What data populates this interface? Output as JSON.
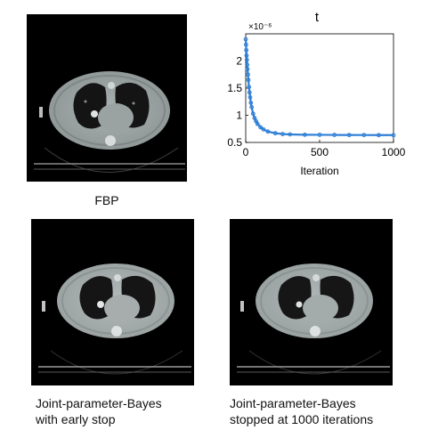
{
  "figure": {
    "panels": [
      {
        "id": "fbp",
        "caption": "FBP"
      },
      {
        "id": "early",
        "caption_lines": [
          "Joint-parameter-Bayes",
          "with early stop"
        ]
      },
      {
        "id": "full",
        "caption_lines": [
          "Joint-parameter-Bayes",
          "stopped at 1000 iterations"
        ]
      }
    ]
  },
  "chart_data": {
    "type": "line",
    "title": "t",
    "xlabel": "Iteration",
    "ylabel": "",
    "exponent_label": "×10⁻⁶",
    "xlim": [
      0,
      1000
    ],
    "ylim": [
      0.5,
      2.5
    ],
    "xticks": [
      "0",
      "500",
      "1000"
    ],
    "yticks": [
      "0.5",
      "1",
      "1.5",
      "2"
    ],
    "grid": false,
    "series": [
      {
        "color": "#2f7fd6",
        "x": [
          0,
          2,
          4,
          6,
          8,
          10,
          12,
          15,
          18,
          22,
          26,
          30,
          35,
          40,
          50,
          60,
          70,
          80,
          100,
          120,
          150,
          200,
          250,
          300,
          400,
          500,
          600,
          700,
          800,
          900,
          1000
        ],
        "y": [
          2.4,
          2.3,
          2.2,
          2.1,
          2.02,
          1.93,
          1.85,
          1.75,
          1.65,
          1.52,
          1.42,
          1.33,
          1.23,
          1.15,
          1.03,
          0.95,
          0.89,
          0.84,
          0.78,
          0.74,
          0.7,
          0.67,
          0.655,
          0.648,
          0.642,
          0.64,
          0.638,
          0.637,
          0.636,
          0.635,
          0.635
        ]
      }
    ]
  }
}
